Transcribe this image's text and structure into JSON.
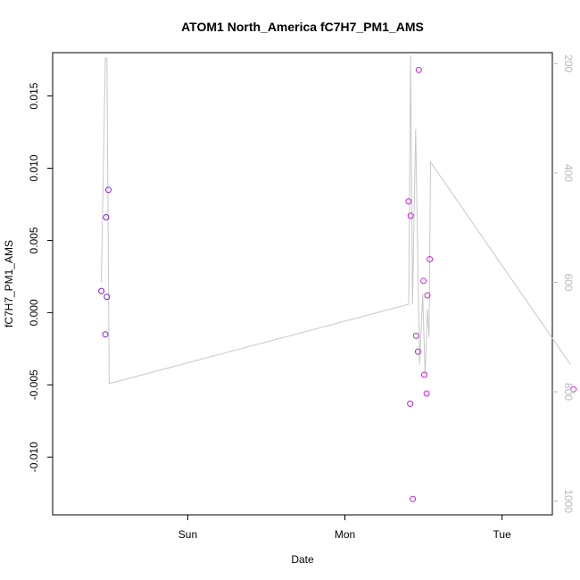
{
  "chart_data": {
    "type": "scatter",
    "title": "ATOM1 North_America fC7H7_PM1_AMS",
    "xlabel": "Date",
    "ylabel": "fC7H7_PM1_AMS",
    "x_axis": {
      "unit": "day",
      "range_days": [
        -0.43,
        2.75
      ],
      "ticks": [
        {
          "day": 0.43,
          "label": "Sun"
        },
        {
          "day": 1.43,
          "label": "Mon"
        },
        {
          "day": 2.43,
          "label": "Tue"
        }
      ]
    },
    "y_left": {
      "range": [
        -0.014,
        0.018
      ],
      "ticks": [
        {
          "value": -0.01,
          "label": "-0.010"
        },
        {
          "value": -0.005,
          "label": "-0.005"
        },
        {
          "value": 0.0,
          "label": "0.000"
        },
        {
          "value": 0.005,
          "label": "0.005"
        },
        {
          "value": 0.01,
          "label": "0.010"
        },
        {
          "value": 0.015,
          "label": "0.015"
        }
      ]
    },
    "y_right": {
      "reversed": true,
      "range": [
        1025,
        180
      ],
      "color": "#b8b8b8",
      "ticks": [
        {
          "value": 200,
          "label": "200"
        },
        {
          "value": 400,
          "label": "400"
        },
        {
          "value": 600,
          "label": "600"
        },
        {
          "value": 800,
          "label": "800"
        },
        {
          "value": 1000,
          "label": "1000"
        }
      ]
    },
    "points": [
      {
        "day": -0.12,
        "value": 0.0015,
        "color": "#8020e0"
      },
      {
        "day": -0.095,
        "value": -0.0015,
        "color": "#8020e0"
      },
      {
        "day": -0.09,
        "value": 0.0066,
        "color": "#8020e0"
      },
      {
        "day": -0.085,
        "value": 0.0011,
        "color": "#8020e0"
      },
      {
        "day": -0.075,
        "value": 0.0085,
        "color": "#8020e0"
      },
      {
        "day": 1.835,
        "value": 0.0077,
        "color": "#c020e0"
      },
      {
        "day": 1.845,
        "value": -0.0063,
        "color": "#c020e0"
      },
      {
        "day": 1.848,
        "value": 0.0067,
        "color": "#c020e0"
      },
      {
        "day": 1.862,
        "value": -0.0129,
        "color": "#c020e0"
      },
      {
        "day": 1.883,
        "value": -0.0016,
        "color": "#c020e0"
      },
      {
        "day": 1.895,
        "value": -0.0027,
        "color": "#c020e0"
      },
      {
        "day": 1.9,
        "value": 0.0168,
        "color": "#d020e0"
      },
      {
        "day": 1.93,
        "value": 0.0022,
        "color": "#d020e0"
      },
      {
        "day": 1.935,
        "value": -0.0043,
        "color": "#d020e0"
      },
      {
        "day": 1.95,
        "value": -0.0056,
        "color": "#d020e0"
      },
      {
        "day": 1.955,
        "value": 0.0012,
        "color": "#d020e0"
      },
      {
        "day": 1.97,
        "value": 0.0037,
        "color": "#d020e0"
      },
      {
        "day": 2.885,
        "value": -0.0053,
        "color": "#e020e0"
      }
    ],
    "line_series": {
      "axis": "right",
      "color": "#c8c8c8",
      "points": [
        {
          "day": -0.12,
          "value": 600
        },
        {
          "day": -0.095,
          "value": 190
        },
        {
          "day": -0.085,
          "value": 190
        },
        {
          "day": -0.07,
          "value": 785
        },
        {
          "day": 1.836,
          "value": 640
        },
        {
          "day": 1.848,
          "value": 185
        },
        {
          "day": 1.86,
          "value": 640
        },
        {
          "day": 1.88,
          "value": 320
        },
        {
          "day": 1.905,
          "value": 750
        },
        {
          "day": 1.925,
          "value": 620
        },
        {
          "day": 1.94,
          "value": 770
        },
        {
          "day": 1.955,
          "value": 650
        },
        {
          "day": 1.965,
          "value": 700
        },
        {
          "day": 1.975,
          "value": 380
        },
        {
          "day": 2.865,
          "value": 750
        }
      ]
    }
  }
}
